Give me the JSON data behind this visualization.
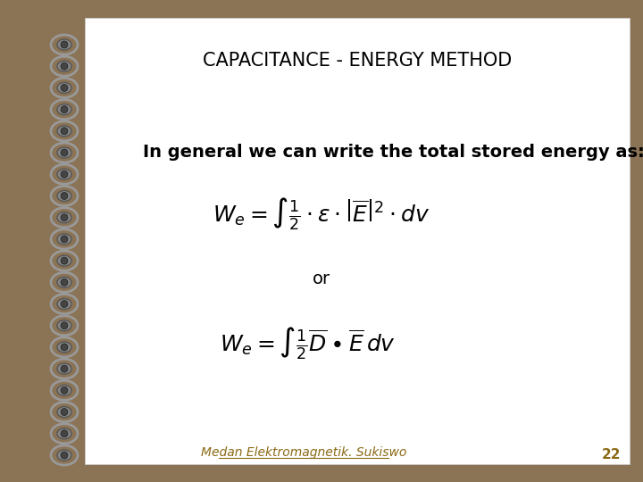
{
  "title": "CAPACITANCE - ENERGY METHOD",
  "body_text": "In general we can write the total stored energy as:",
  "or_text": "or",
  "footer_text": "Medan Elektromagnetik. Sukiswo",
  "page_number": "22",
  "bg_color": "#8B7355",
  "page_bg": "#FFFFFF",
  "title_color": "#000000",
  "body_color": "#000000",
  "footer_color": "#8B6914",
  "page_number_color": "#8B6914",
  "title_fontsize": 15,
  "body_fontsize": 14,
  "formula_fontsize": 18,
  "footer_fontsize": 10,
  "page_number_fontsize": 11
}
